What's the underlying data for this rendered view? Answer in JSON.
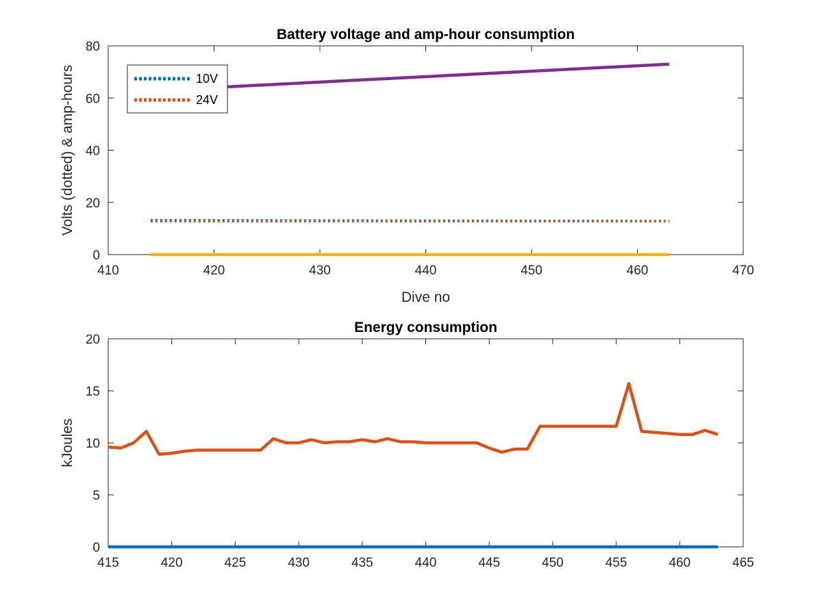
{
  "chart_data": [
    {
      "type": "line",
      "title": "Battery voltage and amp-hour consumption",
      "xlabel": "Dive no",
      "ylabel": "Volts (dotted) & amp-hours",
      "xlim": [
        410,
        470
      ],
      "ylim": [
        0,
        80
      ],
      "xticks": [
        410,
        420,
        430,
        440,
        450,
        460,
        470
      ],
      "yticks": [
        0,
        20,
        40,
        60,
        80
      ],
      "grid": false,
      "legend_position": "top-left",
      "series": [
        {
          "name": "10V",
          "style": "dotted",
          "color": "#0072BD",
          "x": [
            414,
            463
          ],
          "y": [
            13.3,
            12.9
          ]
        },
        {
          "name": "24V",
          "style": "dotted",
          "color": "#D95319",
          "x": [
            414,
            463
          ],
          "y": [
            12.7,
            12.7
          ]
        },
        {
          "style": "solid",
          "color": "#7E2F8E",
          "x": [
            414,
            463
          ],
          "y": [
            62.8,
            73.0
          ]
        },
        {
          "style": "solid",
          "color": "#EDB120",
          "x": [
            414,
            463
          ],
          "y": [
            0,
            0
          ]
        }
      ]
    },
    {
      "type": "line",
      "title": "Energy consumption",
      "xlabel": "",
      "ylabel": "kJoules",
      "xlim": [
        415,
        465
      ],
      "ylim": [
        0,
        20
      ],
      "xticks": [
        415,
        420,
        425,
        430,
        435,
        440,
        445,
        450,
        455,
        460,
        465
      ],
      "yticks": [
        0,
        5,
        10,
        15,
        20
      ],
      "grid": false,
      "series": [
        {
          "style": "solid",
          "color": "#D95319",
          "x": [
            415,
            416,
            417,
            418,
            419,
            420,
            421,
            422,
            423,
            424,
            425,
            426,
            427,
            428,
            429,
            430,
            431,
            432,
            433,
            434,
            435,
            436,
            437,
            438,
            439,
            440,
            441,
            442,
            443,
            444,
            445,
            446,
            447,
            448,
            449,
            450,
            451,
            452,
            453,
            454,
            455,
            456,
            457,
            458,
            459,
            460,
            461,
            462,
            463
          ],
          "y": [
            9.6,
            9.5,
            10.0,
            11.1,
            8.9,
            9.0,
            9.2,
            9.3,
            9.3,
            9.3,
            9.3,
            9.3,
            9.3,
            10.4,
            10.0,
            10.0,
            10.3,
            10.0,
            10.1,
            10.1,
            10.3,
            10.1,
            10.4,
            10.1,
            10.1,
            10.0,
            10.0,
            10.0,
            10.0,
            10.0,
            9.5,
            9.1,
            9.4,
            9.4,
            11.6,
            11.6,
            11.6,
            11.6,
            11.6,
            11.6,
            11.6,
            15.7,
            11.1,
            11.0,
            10.9,
            10.8,
            10.8,
            11.2,
            10.8
          ]
        },
        {
          "style": "solid",
          "color": "#0072BD",
          "x": [
            415,
            463
          ],
          "y": [
            0,
            0
          ]
        }
      ]
    }
  ]
}
